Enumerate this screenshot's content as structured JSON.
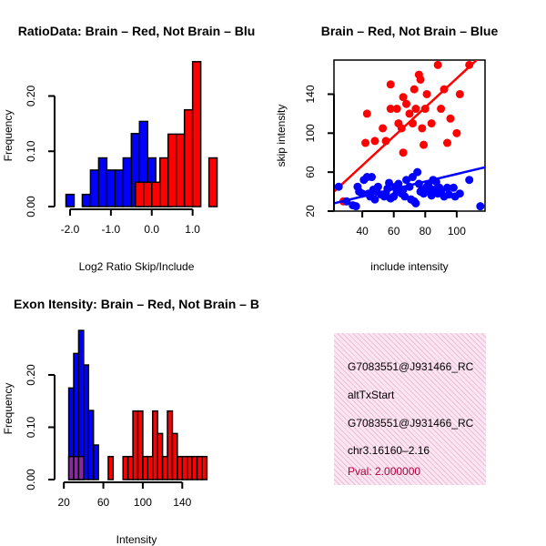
{
  "chart_data": [
    {
      "type": "bar",
      "title": "RatioData: Brain – Red, Not Brain – Blu",
      "xlabel": "Log2 Ratio Skip/Include",
      "ylabel": "Frequency",
      "xlim": [
        -2.2,
        1.52
      ],
      "ylim": [
        0,
        0.265
      ],
      "xticks": [
        "-2.0",
        "-1.0",
        "0.0",
        "1.0"
      ],
      "xtick_values": [
        -2.0,
        -1.0,
        0.0,
        1.0
      ],
      "yticks": [
        "0.00",
        "0.10",
        "0.20"
      ],
      "ytick_values": [
        0.0,
        0.1,
        0.2
      ],
      "series": [
        {
          "name": "Not Brain",
          "color": "#0000ff",
          "bins": [
            [
              -2.1,
              -1.9,
              0.022
            ],
            [
              -1.7,
              -1.5,
              0.022
            ],
            [
              -1.5,
              -1.3,
              0.066
            ],
            [
              -1.3,
              -1.1,
              0.088
            ],
            [
              -1.1,
              -0.9,
              0.066
            ],
            [
              -0.9,
              -0.7,
              0.066
            ],
            [
              -0.7,
              -0.5,
              0.088
            ],
            [
              -0.5,
              -0.3,
              0.132
            ],
            [
              -0.3,
              -0.1,
              0.154
            ],
            [
              -0.1,
              0.1,
              0.088
            ],
            [
              0.1,
              0.3,
              0.044
            ],
            [
              0.3,
              0.5,
              0.022
            ]
          ]
        },
        {
          "name": "Brain",
          "color": "#ff0000",
          "bins": [
            [
              -0.4,
              -0.2,
              0.044
            ],
            [
              -0.2,
              0.0,
              0.044
            ],
            [
              0.0,
              0.2,
              0.044
            ],
            [
              0.2,
              0.4,
              0.088
            ],
            [
              0.4,
              0.6,
              0.131
            ],
            [
              0.6,
              0.8,
              0.131
            ],
            [
              0.8,
              1.0,
              0.175
            ],
            [
              1.0,
              1.2,
              0.262
            ],
            [
              1.4,
              1.6,
              0.088
            ]
          ]
        }
      ],
      "overlap_color": "#8b28a0"
    },
    {
      "type": "scatter",
      "title": "Brain – Red, Not Brain – Blue",
      "xlabel": "include intensity",
      "ylabel": "skip intensity",
      "xlim": [
        22,
        118
      ],
      "ylim": [
        20,
        175
      ],
      "xticks": [
        "40",
        "60",
        "80",
        "100"
      ],
      "xtick_values": [
        40,
        60,
        80,
        100
      ],
      "yticks": [
        "20",
        "60",
        "100",
        "140"
      ],
      "ytick_values": [
        20,
        60,
        100,
        140
      ],
      "series": [
        {
          "name": "Brain",
          "color": "#ff0000",
          "points": [
            [
              28,
              30
            ],
            [
              42,
              90
            ],
            [
              43,
              120
            ],
            [
              48,
              92
            ],
            [
              53,
              105
            ],
            [
              55,
              92
            ],
            [
              58,
              150
            ],
            [
              58,
              125
            ],
            [
              62,
              125
            ],
            [
              63,
              110
            ],
            [
              65,
              105
            ],
            [
              66,
              80
            ],
            [
              66,
              137
            ],
            [
              68,
              130
            ],
            [
              70,
              120
            ],
            [
              72,
              110
            ],
            [
              73,
              145
            ],
            [
              74,
              125
            ],
            [
              76,
              160
            ],
            [
              77,
              155
            ],
            [
              78,
              105
            ],
            [
              79,
              88
            ],
            [
              80,
              125
            ],
            [
              81,
              140
            ],
            [
              84,
              110
            ],
            [
              88,
              170
            ],
            [
              90,
              125
            ],
            [
              92,
              145
            ],
            [
              94,
              90
            ],
            [
              96,
              115
            ],
            [
              100,
              100
            ],
            [
              102,
              140
            ],
            [
              108,
              170
            ]
          ],
          "fit": [
            [
              22,
              40
            ],
            [
              118,
              183
            ]
          ]
        },
        {
          "name": "Not Brain",
          "color": "#0000ff",
          "points": [
            [
              25,
              45
            ],
            [
              30,
              30
            ],
            [
              34,
              26
            ],
            [
              36,
              25
            ],
            [
              37,
              45
            ],
            [
              38,
              40
            ],
            [
              40,
              38
            ],
            [
              41,
              52
            ],
            [
              43,
              55
            ],
            [
              44,
              38
            ],
            [
              45,
              35
            ],
            [
              46,
              55
            ],
            [
              47,
              42
            ],
            [
              48,
              32
            ],
            [
              49,
              40
            ],
            [
              50,
              45
            ],
            [
              52,
              37
            ],
            [
              54,
              35
            ],
            [
              55,
              38
            ],
            [
              56,
              43
            ],
            [
              57,
              49
            ],
            [
              58,
              33
            ],
            [
              60,
              35
            ],
            [
              61,
              45
            ],
            [
              62,
              40
            ],
            [
              63,
              48
            ],
            [
              65,
              38
            ],
            [
              66,
              42
            ],
            [
              67,
              35
            ],
            [
              68,
              52
            ],
            [
              70,
              45
            ],
            [
              71,
              32
            ],
            [
              72,
              55
            ],
            [
              73,
              30
            ],
            [
              74,
              28
            ],
            [
              75,
              60
            ],
            [
              76,
              48
            ],
            [
              77,
              40
            ],
            [
              78,
              42
            ],
            [
              79,
              38
            ],
            [
              80,
              40
            ],
            [
              81,
              45
            ],
            [
              82,
              47
            ],
            [
              83,
              43
            ],
            [
              84,
              36
            ],
            [
              85,
              52
            ],
            [
              86,
              42
            ],
            [
              87,
              50
            ],
            [
              88,
              38
            ],
            [
              89,
              44
            ],
            [
              90,
              40
            ],
            [
              92,
              35
            ],
            [
              94,
              44
            ],
            [
              95,
              37
            ],
            [
              98,
              44
            ],
            [
              99,
              35
            ],
            [
              102,
              38
            ],
            [
              108,
              52
            ],
            [
              115,
              25
            ]
          ],
          "fit": [
            [
              22,
              28
            ],
            [
              118,
              65
            ]
          ]
        }
      ]
    },
    {
      "type": "bar",
      "title": "Exon Itensity: Brain – Red, Not Brain – B",
      "xlabel": "Intensity",
      "ylabel": "Frequency",
      "xlim": [
        18,
        172
      ],
      "ylim": [
        0,
        0.28
      ],
      "xticks": [
        "20",
        "60",
        "100",
        "140"
      ],
      "xtick_values": [
        20,
        60,
        100,
        140
      ],
      "yticks": [
        "0.00",
        "0.10",
        "0.20"
      ],
      "ytick_values": [
        0.0,
        0.1,
        0.2
      ],
      "series": [
        {
          "name": "Not Brain",
          "color": "#0000ff",
          "bins": [
            [
              25,
              30,
              0.175
            ],
            [
              30,
              35,
              0.241
            ],
            [
              35,
              40,
              0.285
            ],
            [
              40,
              45,
              0.219
            ],
            [
              45,
              50,
              0.132
            ],
            [
              50,
              55,
              0.066
            ]
          ]
        },
        {
          "name": "Brain",
          "color": "#ff0000",
          "bins": [
            [
              25,
              30,
              0.044
            ],
            [
              30,
              35,
              0.044
            ],
            [
              35,
              40,
              0.044
            ],
            [
              65,
              70,
              0.044
            ],
            [
              80,
              85,
              0.044
            ],
            [
              85,
              90,
              0.044
            ],
            [
              90,
              95,
              0.131
            ],
            [
              95,
              100,
              0.131
            ],
            [
              100,
              105,
              0.044
            ],
            [
              105,
              110,
              0.044
            ],
            [
              110,
              115,
              0.131
            ],
            [
              115,
              120,
              0.088
            ],
            [
              120,
              125,
              0.044
            ],
            [
              125,
              130,
              0.131
            ],
            [
              130,
              135,
              0.088
            ],
            [
              135,
              140,
              0.044
            ],
            [
              140,
              145,
              0.044
            ],
            [
              145,
              150,
              0.044
            ],
            [
              150,
              155,
              0.044
            ],
            [
              155,
              160,
              0.044
            ],
            [
              160,
              165,
              0.044
            ]
          ]
        }
      ],
      "overlap_color": "#8b28a0"
    }
  ],
  "info": {
    "line1": "G7083551@J931466_RC",
    "line2": "altTxStart",
    "line3": "G7083551@J931466_RC",
    "line4": "chr3.16160–2.16",
    "pval": "Pval: 2.000000"
  }
}
